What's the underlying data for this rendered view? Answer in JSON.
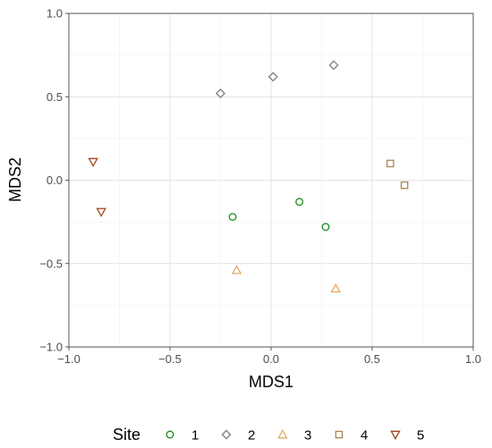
{
  "chart_data": {
    "type": "scatter",
    "xlabel": "MDS1",
    "ylabel": "MDS2",
    "xlim": [
      -1.0,
      1.0
    ],
    "ylim": [
      -1.0,
      1.0
    ],
    "xticks": [
      -1.0,
      -0.5,
      0.0,
      0.5,
      1.0
    ],
    "yticks": [
      -1.0,
      -0.5,
      0.0,
      0.5,
      1.0
    ],
    "xtick_labels": [
      "−1.0",
      "−0.5",
      "0.0",
      "0.5",
      "1.0"
    ],
    "ytick_labels": [
      "−1.0",
      "−0.5",
      "0.0",
      "0.5",
      "1.0"
    ],
    "grid": true,
    "legend": {
      "title": "Site",
      "position": "bottom"
    },
    "series": [
      {
        "name": "1",
        "shape": "circle",
        "color": "#1a8a1a",
        "points": [
          [
            -0.19,
            -0.22
          ],
          [
            0.14,
            -0.13
          ],
          [
            0.27,
            -0.28
          ]
        ]
      },
      {
        "name": "2",
        "shape": "diamond",
        "color": "#7f7f7f",
        "points": [
          [
            -0.25,
            0.52
          ],
          [
            0.01,
            0.62
          ],
          [
            0.31,
            0.69
          ]
        ]
      },
      {
        "name": "3",
        "shape": "triangle-up",
        "color": "#e0a96b",
        "points": [
          [
            -0.17,
            -0.54
          ],
          [
            0.32,
            -0.65
          ]
        ]
      },
      {
        "name": "4",
        "shape": "square",
        "color": "#a6864f",
        "points": [
          [
            0.59,
            0.1
          ],
          [
            0.66,
            -0.03
          ]
        ]
      },
      {
        "name": "5",
        "shape": "triangle-down",
        "color": "#a0461a",
        "points": [
          [
            -0.88,
            0.11
          ],
          [
            -0.84,
            -0.19
          ]
        ]
      }
    ]
  }
}
